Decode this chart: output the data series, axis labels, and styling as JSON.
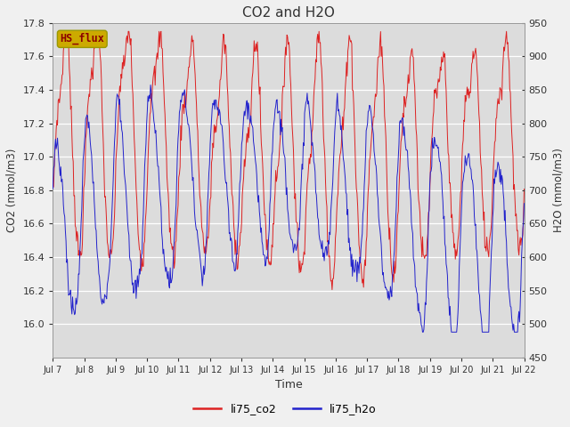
{
  "title": "CO2 and H2O",
  "xlabel": "Time",
  "ylabel_left": "CO2 (mmol/m3)",
  "ylabel_right": "H2O (mmol/m3)",
  "ylim_left": [
    15.8,
    17.8
  ],
  "ylim_right": [
    450,
    950
  ],
  "yticks_left": [
    16.0,
    16.2,
    16.4,
    16.6,
    16.8,
    17.0,
    17.2,
    17.4,
    17.6,
    17.8
  ],
  "yticks_right": [
    450,
    500,
    550,
    600,
    650,
    700,
    750,
    800,
    850,
    900,
    950
  ],
  "xtick_labels": [
    "Jul 7",
    "Jul 8",
    "Jul 9",
    "Jul 10",
    "Jul 11",
    "Jul 12",
    "Jul 13",
    "Jul 14",
    "Jul 15",
    "Jul 16",
    "Jul 17",
    "Jul 18",
    "Jul 19",
    "Jul 20",
    "Jul 21",
    "Jul 22"
  ],
  "color_co2": "#dd2222",
  "color_h2o": "#2222cc",
  "legend_labels": [
    "li75_co2",
    "li75_h2o"
  ],
  "annotation_text": "HS_flux",
  "annotation_color": "#8b0000",
  "annotation_bg": "#ccaa00",
  "plot_bg": "#dcdcdc",
  "fig_bg": "#f0f0f0",
  "grid_color": "#ffffff"
}
